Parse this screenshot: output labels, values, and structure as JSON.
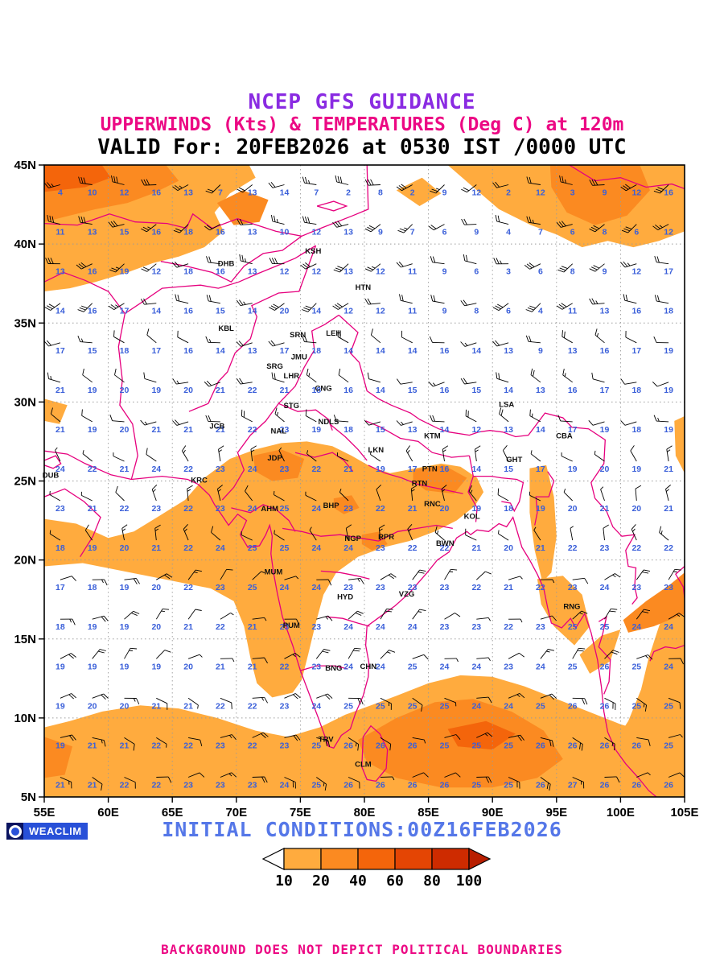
{
  "header": {
    "line1": "NCEP GFS GUIDANCE",
    "line2": "UPPERWINDS (Kts) & TEMPERATURES (Deg C) at 120m",
    "line3": "VALID For: 20FEB2026 at 0530 IST /0000 UTC"
  },
  "footer": {
    "logo_text": "WEACLIM",
    "initial_conditions": "INITIAL CONDITIONS:00Z16FEB2026",
    "disclaimer": "BACKGROUND DOES NOT DEPICT POLITICAL BOUNDARIES"
  },
  "colors": {
    "title_guidance": "#8a2be2",
    "magenta": "#ec0984",
    "boundary": "#e6007e",
    "temp_values": "#3a5fd9",
    "initial_conditions": "#5577e8",
    "logo_blue": "#2850d8",
    "gridline": "#9a9a9a",
    "fill_10_20": "#ffab3e",
    "fill_20_40": "#fb8a21",
    "fill_40_60": "#f4650b"
  },
  "colorbar": {
    "labels": [
      "10",
      "20",
      "40",
      "60",
      "80",
      "100"
    ],
    "segment_colors": [
      "#ffab3e",
      "#fb8a21",
      "#f4650b",
      "#e44504",
      "#ce2b00"
    ],
    "arrow_left_color": "#ffffff",
    "arrow_right_color": "#b81e00"
  },
  "chart_data": {
    "type": "heatmap",
    "title": "NCEP GFS GUIDANCE",
    "subtitle": "UPPERWINDS (Kts) & TEMPERATURES (Deg C) at 120m",
    "valid_time": "VALID For: 20FEB2026 at 0530 IST /0000 UTC",
    "initial_conditions": "00Z16FEB2026",
    "legend_values": [
      10,
      20,
      40,
      60,
      80,
      100
    ],
    "x_axis": {
      "range": [
        55,
        105
      ],
      "unit": "degrees East",
      "ticks": [
        "55E",
        "60E",
        "65E",
        "70E",
        "75E",
        "80E",
        "85E",
        "90E",
        "95E",
        "100E",
        "105E"
      ]
    },
    "y_axis": {
      "range": [
        5,
        45
      ],
      "unit": "degrees North",
      "ticks": [
        "45N",
        "40N",
        "35N",
        "30N",
        "25N",
        "20N",
        "15N",
        "10N",
        "5N"
      ]
    },
    "temperature_grid": {
      "units": "Deg C",
      "lon_start": 56.25,
      "lon_step": 2.5,
      "lat_start": 43.75,
      "lat_step": -2.5,
      "values": [
        [
          4,
          10,
          12,
          16,
          13,
          7,
          13,
          14,
          7,
          2,
          8,
          2,
          9,
          12,
          2,
          12,
          3,
          9,
          12,
          16
        ],
        [
          11,
          13,
          15,
          16,
          18,
          16,
          13,
          10,
          12,
          13,
          9,
          7,
          6,
          9,
          4,
          7,
          6,
          8,
          6,
          12
        ],
        [
          13,
          16,
          19,
          12,
          18,
          16,
          13,
          12,
          12,
          13,
          12,
          11,
          9,
          6,
          3,
          6,
          8,
          9,
          12,
          17
        ],
        [
          14,
          16,
          17,
          14,
          16,
          15,
          14,
          20,
          14,
          12,
          12,
          11,
          9,
          8,
          6,
          4,
          11,
          13,
          16,
          18
        ],
        [
          17,
          15,
          18,
          17,
          16,
          14,
          13,
          17,
          18,
          14,
          14,
          14,
          16,
          14,
          13,
          9,
          13,
          16,
          17,
          19
        ],
        [
          21,
          19,
          20,
          19,
          20,
          21,
          22,
          21,
          18,
          16,
          14,
          15,
          16,
          15,
          14,
          13,
          16,
          17,
          18,
          19
        ],
        [
          21,
          19,
          20,
          21,
          21,
          21,
          22,
          23,
          19,
          18,
          15,
          13,
          14,
          12,
          13,
          14,
          17,
          19,
          18,
          19
        ],
        [
          24,
          22,
          21,
          24,
          22,
          23,
          24,
          23,
          22,
          21,
          19,
          17,
          16,
          14,
          15,
          17,
          19,
          20,
          19,
          21
        ],
        [
          23,
          21,
          22,
          23,
          22,
          23,
          24,
          25,
          24,
          23,
          22,
          21,
          20,
          19,
          18,
          19,
          20,
          21,
          20,
          21
        ],
        [
          18,
          19,
          20,
          21,
          22,
          24,
          25,
          25,
          24,
          24,
          23,
          22,
          22,
          21,
          20,
          21,
          22,
          23,
          22,
          22
        ],
        [
          17,
          18,
          19,
          20,
          22,
          23,
          25,
          24,
          24,
          23,
          23,
          23,
          23,
          22,
          21,
          22,
          23,
          24,
          23,
          23
        ],
        [
          18,
          19,
          19,
          20,
          21,
          22,
          21,
          23,
          23,
          24,
          24,
          24,
          23,
          23,
          22,
          23,
          25,
          25,
          24,
          24
        ],
        [
          19,
          19,
          19,
          19,
          20,
          21,
          21,
          22,
          23,
          24,
          24,
          25,
          24,
          24,
          23,
          24,
          25,
          26,
          25,
          24
        ],
        [
          19,
          20,
          20,
          21,
          21,
          22,
          22,
          23,
          24,
          25,
          25,
          25,
          25,
          24,
          24,
          25,
          26,
          26,
          25,
          25
        ],
        [
          19,
          21,
          21,
          22,
          22,
          23,
          22,
          23,
          25,
          26,
          26,
          26,
          25,
          25,
          25,
          26,
          26,
          26,
          26,
          25
        ],
        [
          21,
          21,
          22,
          22,
          23,
          23,
          23,
          24,
          25,
          26,
          26,
          26,
          26,
          25,
          25,
          26,
          27,
          26,
          26,
          26
        ]
      ]
    },
    "wind_field": {
      "units": "Kts",
      "description": "Wind barbs: strong westerlies 20-35 kt north of 35N, moderate northwesterlies 10-20 kt over the plains, light northerlies 5-15 kt over central India, easterlies 10-20 kt south of 20N and over the peninsular seas",
      "bands": [
        {
          "min_lat": 35,
          "dir": 255,
          "spd": 25
        },
        {
          "min_lat": 27.5,
          "dir": 280,
          "spd": 15
        },
        {
          "min_lat": 20,
          "dir": 325,
          "spd": 10
        },
        {
          "min_lat": 12.5,
          "dir": 60,
          "spd": 12
        },
        {
          "min_lat": -90,
          "dir": 95,
          "spd": 14
        }
      ]
    },
    "stations": [
      {
        "id": "KSH",
        "lon": 76.0,
        "lat": 39.4
      },
      {
        "id": "DHB",
        "lon": 69.2,
        "lat": 38.6
      },
      {
        "id": "HTN",
        "lon": 79.9,
        "lat": 37.1
      },
      {
        "id": "KBL",
        "lon": 69.2,
        "lat": 34.5
      },
      {
        "id": "LEH",
        "lon": 77.6,
        "lat": 34.2
      },
      {
        "id": "SRN",
        "lon": 74.8,
        "lat": 34.1
      },
      {
        "id": "JMU",
        "lon": 74.9,
        "lat": 32.7
      },
      {
        "id": "SRG",
        "lon": 73.0,
        "lat": 32.1
      },
      {
        "id": "LHR",
        "lon": 74.3,
        "lat": 31.5
      },
      {
        "id": "CNG",
        "lon": 76.8,
        "lat": 30.7
      },
      {
        "id": "STG",
        "lon": 74.3,
        "lat": 29.6
      },
      {
        "id": "JCB",
        "lon": 68.5,
        "lat": 28.3
      },
      {
        "id": "NAL",
        "lon": 73.3,
        "lat": 28.0
      },
      {
        "id": "NDLS",
        "lon": 77.2,
        "lat": 28.6
      },
      {
        "id": "LSA",
        "lon": 91.1,
        "lat": 29.7
      },
      {
        "id": "CBA",
        "lon": 95.6,
        "lat": 27.7
      },
      {
        "id": "KTM",
        "lon": 85.3,
        "lat": 27.7
      },
      {
        "id": "GHT",
        "lon": 91.7,
        "lat": 26.2
      },
      {
        "id": "LKN",
        "lon": 80.9,
        "lat": 26.8
      },
      {
        "id": "JDP",
        "lon": 73.0,
        "lat": 26.3
      },
      {
        "id": "PTN",
        "lon": 85.1,
        "lat": 25.6
      },
      {
        "id": "DUB",
        "lon": 55.5,
        "lat": 25.2
      },
      {
        "id": "KRC",
        "lon": 67.1,
        "lat": 24.9
      },
      {
        "id": "RTN",
        "lon": 84.3,
        "lat": 24.7
      },
      {
        "id": "AHM",
        "lon": 72.6,
        "lat": 23.1
      },
      {
        "id": "BHP",
        "lon": 77.4,
        "lat": 23.3
      },
      {
        "id": "RNC",
        "lon": 85.3,
        "lat": 23.4
      },
      {
        "id": "KOL",
        "lon": 88.4,
        "lat": 22.6
      },
      {
        "id": "NGP",
        "lon": 79.1,
        "lat": 21.2
      },
      {
        "id": "RPR",
        "lon": 81.7,
        "lat": 21.3
      },
      {
        "id": "BWN",
        "lon": 86.3,
        "lat": 20.9
      },
      {
        "id": "MUM",
        "lon": 72.9,
        "lat": 19.1
      },
      {
        "id": "HYD",
        "lon": 78.5,
        "lat": 17.5
      },
      {
        "id": "VZG",
        "lon": 83.3,
        "lat": 17.7
      },
      {
        "id": "RNG",
        "lon": 96.2,
        "lat": 16.9
      },
      {
        "id": "PUM",
        "lon": 74.3,
        "lat": 15.7
      },
      {
        "id": "CHN",
        "lon": 80.3,
        "lat": 13.1
      },
      {
        "id": "BNG",
        "lon": 77.6,
        "lat": 13.0
      },
      {
        "id": "TRV",
        "lon": 77.0,
        "lat": 8.5
      },
      {
        "id": "CLM",
        "lon": 79.9,
        "lat": 6.9
      }
    ]
  }
}
